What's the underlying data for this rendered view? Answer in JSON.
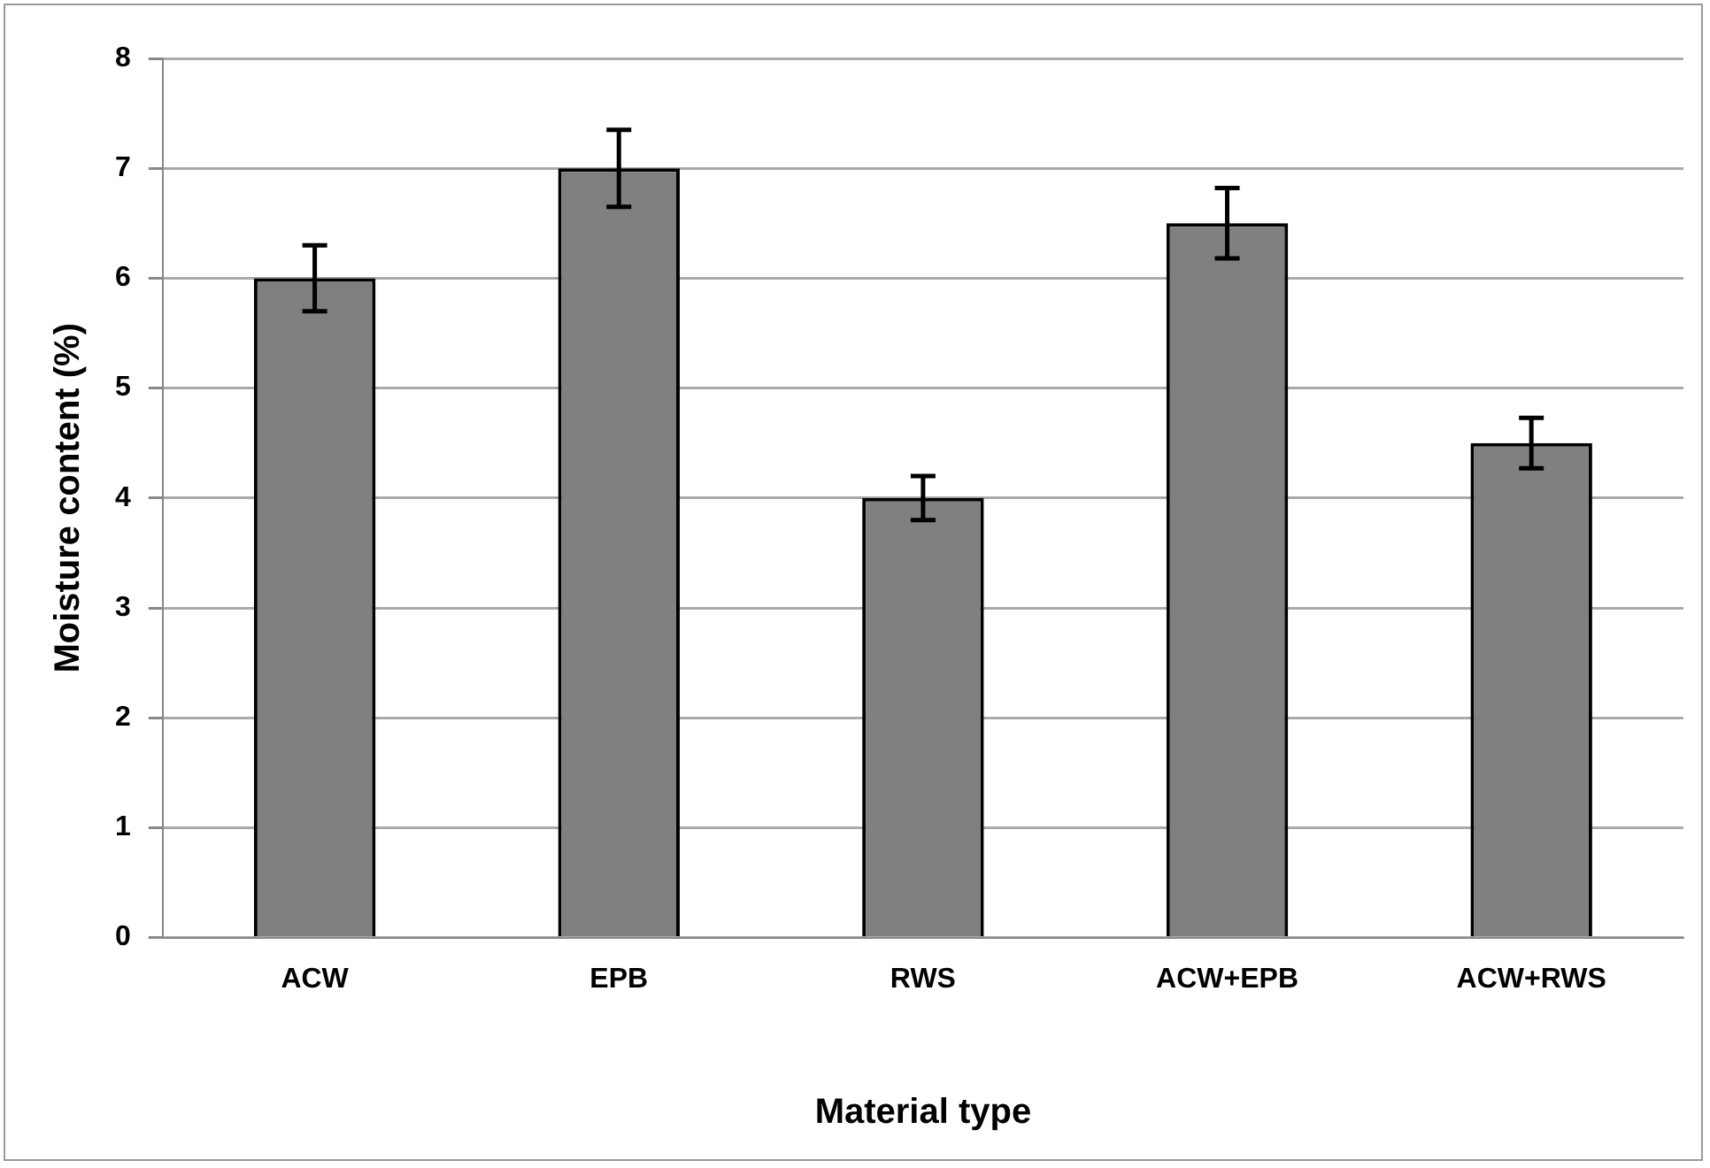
{
  "chart_data": {
    "type": "bar",
    "xlabel": "Material type",
    "ylabel": "Moisture content (%)",
    "categories": [
      "ACW",
      "EPB",
      "RWS",
      "ACW+EPB",
      "ACW+RWS"
    ],
    "values": [
      6,
      7,
      4,
      6.5,
      4.5
    ],
    "errors": [
      0.3,
      0.35,
      0.2,
      0.32,
      0.23
    ],
    "color": "#808080",
    "ylim": [
      0,
      8
    ],
    "yticks": [
      0,
      1,
      2,
      3,
      4,
      5,
      6,
      7,
      8
    ],
    "grid": "y",
    "legend": false
  }
}
